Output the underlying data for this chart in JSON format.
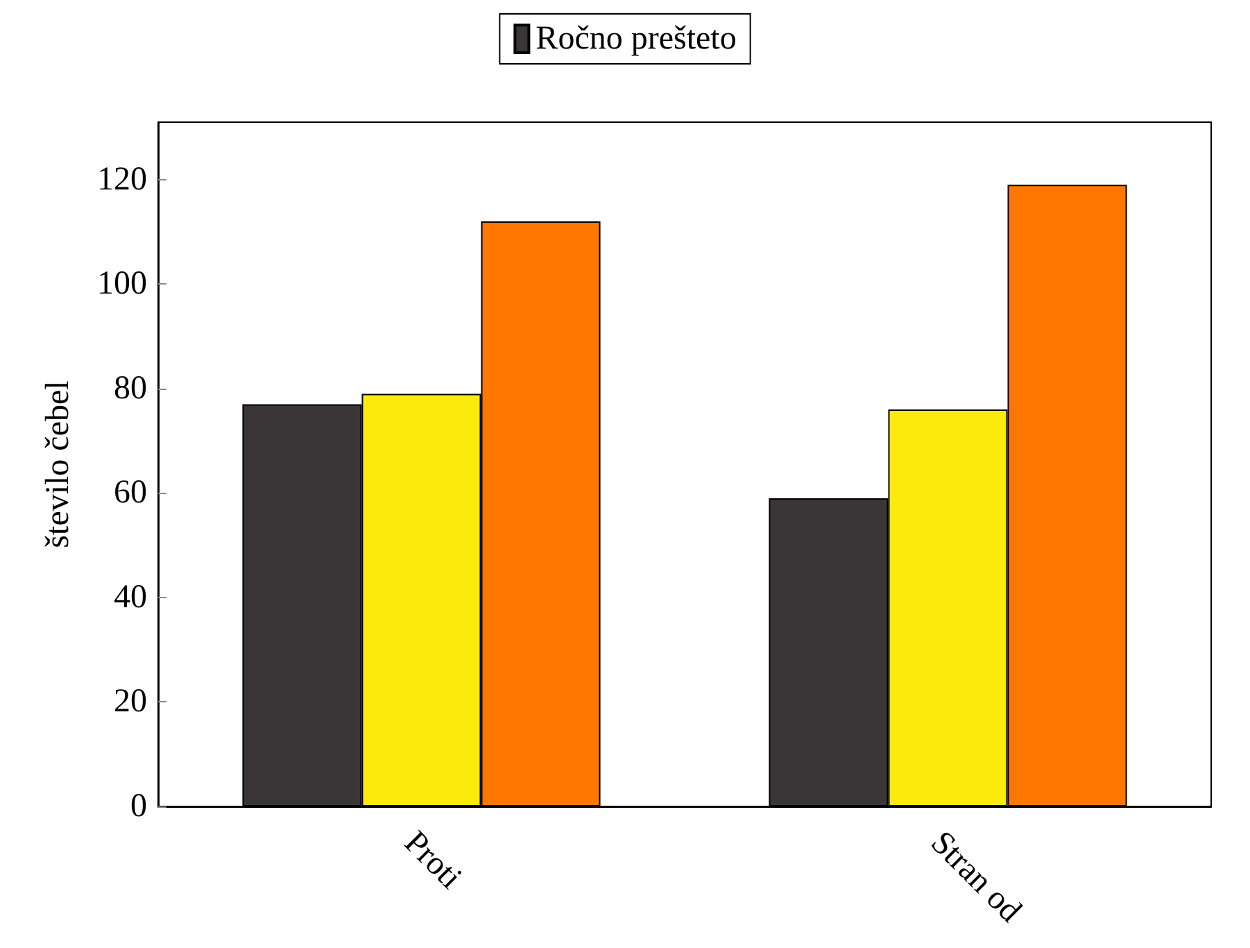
{
  "chart_data": {
    "type": "bar",
    "ylabel": "število čebel",
    "categories": [
      "Proti",
      "Stran od"
    ],
    "series": [
      {
        "name": "Ročno prešteto",
        "color": "#3a3536",
        "values": [
          77,
          59
        ]
      },
      {
        "color": "#fbea0c",
        "values": [
          79,
          76
        ]
      },
      {
        "color": "#ff7700",
        "values": [
          112,
          119
        ]
      }
    ],
    "ylim": [
      0,
      131
    ],
    "yticks": [
      0,
      20,
      40,
      60,
      80,
      100,
      120
    ],
    "grid": false,
    "legend": "top"
  }
}
